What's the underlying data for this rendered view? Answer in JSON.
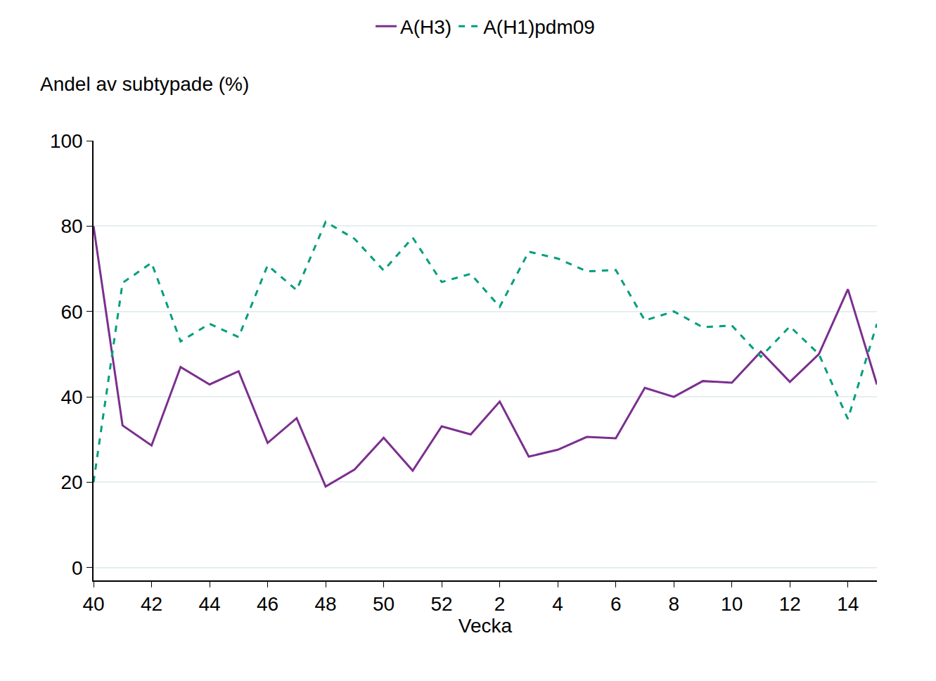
{
  "chart_data": {
    "type": "line",
    "x_label": "Vecka",
    "y_label": "Andel av subtypade (%)",
    "categories": [
      "40",
      null,
      "42",
      null,
      "44",
      null,
      "46",
      null,
      "48",
      null,
      "50",
      null,
      "52",
      null,
      "2",
      null,
      "4",
      null,
      "6",
      null,
      "8",
      null,
      "10",
      null,
      "12",
      null,
      "14",
      null
    ],
    "series": [
      {
        "name": "A(H3)",
        "color": "#7b2f8e",
        "line_style": "solid",
        "values": [
          80,
          33.3,
          28.6,
          47,
          42.9,
          46,
          29.2,
          35,
          19,
          23,
          30.4,
          22.7,
          33.1,
          31.2,
          38.9,
          26,
          27.6,
          30.6,
          30.3,
          42.1,
          40,
          43.7,
          43.3,
          50.6,
          43.5,
          50,
          65.2,
          42.9
        ]
      },
      {
        "name": "A(H1)pdm09",
        "color": "#009e7e",
        "line_style": "dash",
        "values": [
          20,
          66.7,
          71.4,
          53,
          57.1,
          54,
          70.8,
          65,
          81,
          77,
          69.6,
          77.3,
          66.9,
          68.8,
          61.1,
          74,
          72.4,
          69.4,
          69.7,
          57.9,
          60,
          56.3,
          56.7,
          49.4,
          56.5,
          50,
          34.8,
          57.1
        ]
      }
    ],
    "ylim": [
      -3,
      100
    ],
    "yticks": [
      0,
      20,
      40,
      60,
      80,
      100
    ],
    "grid": true,
    "legend": "top"
  }
}
